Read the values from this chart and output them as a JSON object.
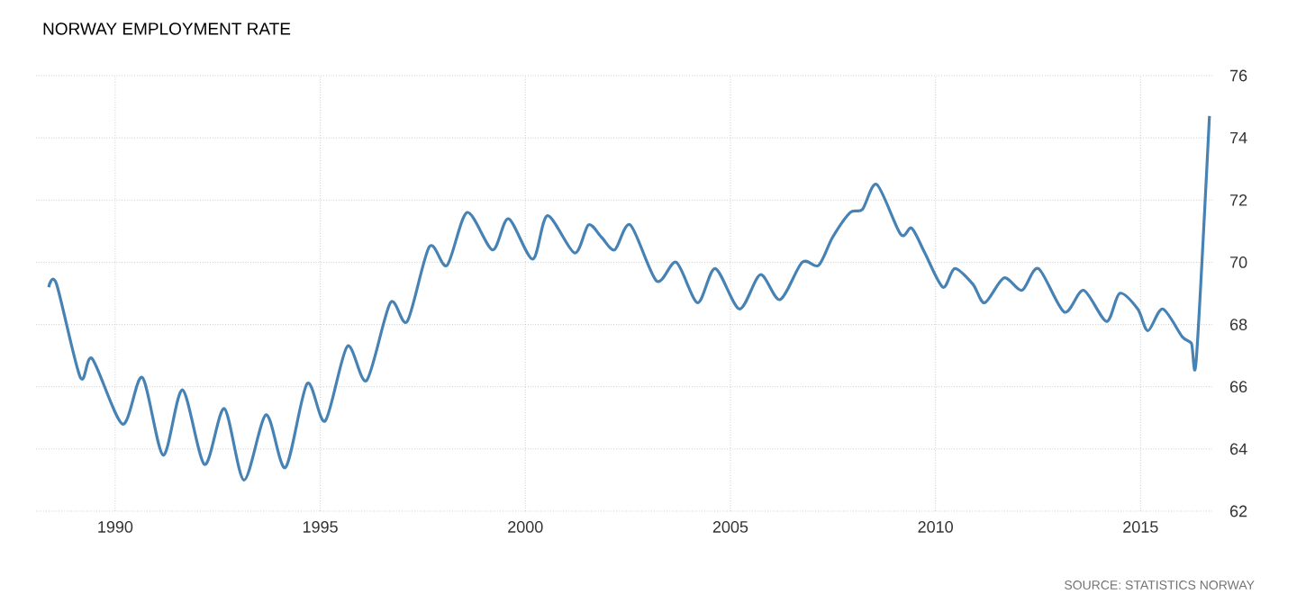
{
  "chart_data": {
    "type": "line",
    "title": "NORWAY EMPLOYMENT RATE",
    "annotations": [
      "SOURCE: STATISTICS NORWAY"
    ],
    "x": [
      1988.38,
      1988.57,
      1989.15,
      1989.44,
      1990.18,
      1990.66,
      1991.17,
      1991.64,
      1992.18,
      1992.66,
      1993.14,
      1993.68,
      1994.15,
      1994.68,
      1995.12,
      1995.66,
      1996.13,
      1996.71,
      1997.12,
      1997.66,
      1998.09,
      1998.58,
      1999.2,
      1999.59,
      2000.18,
      2000.54,
      2001.2,
      2001.54,
      2001.86,
      2002.18,
      2002.56,
      2003.2,
      2003.68,
      2004.2,
      2004.63,
      2005.22,
      2005.73,
      2006.21,
      2006.75,
      2007.15,
      2007.49,
      2007.92,
      2008.22,
      2008.57,
      2009.15,
      2009.42,
      2009.74,
      2010.18,
      2010.47,
      2010.91,
      2011.2,
      2011.67,
      2012.11,
      2012.51,
      2013.14,
      2013.61,
      2014.17,
      2014.49,
      2014.93,
      2015.18,
      2015.54,
      2016.02,
      2016.24,
      2016.36,
      2016.68
    ],
    "series": [
      {
        "color": "#4682b4",
        "values": [
          69.2,
          69.3,
          66.3,
          66.9,
          64.8,
          66.3,
          63.8,
          65.9,
          63.5,
          65.3,
          63.0,
          65.1,
          63.4,
          66.1,
          64.9,
          67.3,
          66.2,
          68.7,
          68.1,
          70.5,
          69.9,
          71.6,
          70.4,
          71.4,
          70.1,
          71.5,
          70.3,
          71.2,
          70.8,
          70.4,
          71.2,
          69.4,
          70.0,
          68.7,
          69.8,
          68.5,
          69.6,
          68.8,
          70.0,
          69.9,
          70.8,
          71.6,
          71.7,
          72.5,
          70.9,
          71.1,
          70.3,
          69.2,
          69.8,
          69.3,
          68.7,
          69.5,
          69.1,
          69.8,
          68.4,
          69.1,
          68.1,
          69.0,
          68.5,
          67.8,
          68.5,
          67.6,
          67.4,
          66.9,
          74.7
        ]
      }
    ],
    "xlim": [
      1988.07,
      2016.75
    ],
    "ylim": [
      62,
      76
    ],
    "xticks": [
      1990,
      1995,
      2000,
      2005,
      2010,
      2015
    ],
    "yticks": [
      62,
      64,
      66,
      68,
      70,
      72,
      74,
      76
    ],
    "grid": true,
    "line_style": "solid",
    "marker": "none"
  }
}
